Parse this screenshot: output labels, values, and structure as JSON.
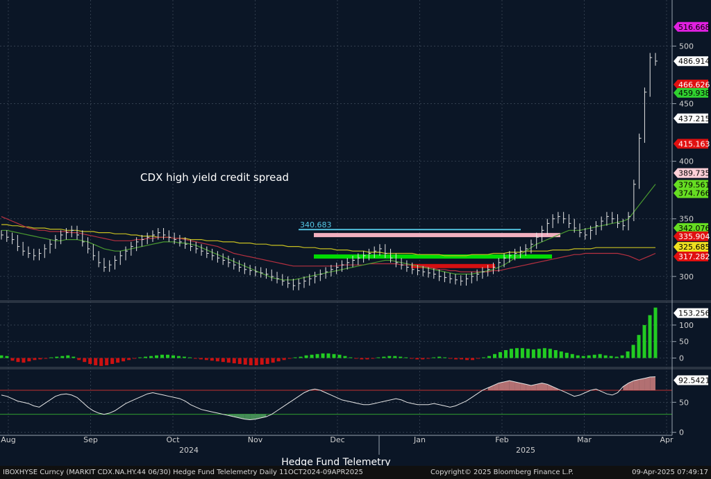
{
  "chart_data": [
    {
      "type": "line",
      "title": "CDX high yield credit spread",
      "subtype": "daily price bars with TD Sequential counts, moving averages and support/resistance levels",
      "ylim": [
        280,
        540
      ],
      "yticks": [
        300,
        350,
        400,
        450,
        500
      ],
      "months": [
        "Aug",
        "Sep",
        "Oct",
        "Nov",
        "Dec",
        "Jan",
        "Feb",
        "Mar",
        "Apr"
      ],
      "years": [
        "2024",
        "2025"
      ],
      "close": [
        336,
        334,
        332,
        326,
        322,
        320,
        318,
        320,
        324,
        328,
        332,
        336,
        338,
        340,
        336,
        330,
        324,
        318,
        312,
        308,
        310,
        314,
        318,
        322,
        326,
        330,
        332,
        334,
        336,
        338,
        336,
        334,
        332,
        330,
        328,
        326,
        324,
        322,
        320,
        318,
        316,
        314,
        312,
        310,
        308,
        306,
        305,
        304,
        303,
        302,
        300,
        298,
        296,
        294,
        292,
        294,
        296,
        298,
        300,
        302,
        304,
        306,
        308,
        310,
        312,
        314,
        316,
        318,
        320,
        322,
        324,
        320,
        316,
        312,
        310,
        308,
        306,
        305,
        304,
        303,
        302,
        300,
        299,
        298,
        297,
        296,
        298,
        300,
        302,
        304,
        306,
        308,
        312,
        316,
        318,
        320,
        322,
        324,
        328,
        334,
        340,
        346,
        350,
        352,
        350,
        346,
        342,
        338,
        336,
        340,
        344,
        348,
        352,
        350,
        346,
        344,
        352,
        380,
        420,
        460,
        490,
        487
      ],
      "ma_yellow": [
        345,
        345,
        344,
        344,
        343,
        343,
        342,
        342,
        342,
        341,
        341,
        341,
        340,
        340,
        340,
        339,
        339,
        339,
        338,
        338,
        338,
        337,
        337,
        337,
        336,
        336,
        335,
        335,
        335,
        334,
        334,
        334,
        333,
        333,
        333,
        332,
        332,
        332,
        331,
        331,
        331,
        330,
        330,
        330,
        329,
        329,
        329,
        328,
        328,
        328,
        327,
        327,
        327,
        326,
        326,
        326,
        325,
        325,
        325,
        324,
        324,
        324,
        323,
        323,
        323,
        322,
        322,
        322,
        321,
        321,
        321,
        320,
        320,
        320,
        320,
        320,
        320,
        319,
        319,
        319,
        319,
        319,
        318,
        318,
        318,
        318,
        318,
        319,
        319,
        319,
        319,
        320,
        320,
        320,
        321,
        321,
        321,
        322,
        322,
        322,
        322,
        322,
        323,
        323,
        323,
        323,
        324,
        324,
        324,
        324,
        325,
        325,
        325,
        325,
        325,
        325,
        325,
        325,
        325,
        325,
        325,
        325
      ],
      "ma_red": [
        352,
        350,
        348,
        346,
        344,
        342,
        341,
        340,
        340,
        339,
        339,
        339,
        339,
        338,
        338,
        337,
        336,
        335,
        334,
        333,
        332,
        331,
        331,
        331,
        331,
        332,
        332,
        333,
        333,
        334,
        334,
        334,
        333,
        333,
        332,
        331,
        330,
        329,
        328,
        327,
        326,
        324,
        322,
        320,
        319,
        318,
        317,
        316,
        315,
        314,
        313,
        312,
        311,
        310,
        309,
        309,
        309,
        309,
        309,
        309,
        309,
        309,
        309,
        310,
        310,
        310,
        310,
        310,
        311,
        311,
        311,
        311,
        311,
        311,
        310,
        310,
        310,
        309,
        309,
        308,
        307,
        306,
        306,
        305,
        305,
        304,
        304,
        304,
        304,
        304,
        304,
        305,
        305,
        306,
        307,
        308,
        309,
        310,
        311,
        312,
        313,
        314,
        315,
        316,
        317,
        318,
        319,
        319,
        320,
        320,
        320,
        320,
        320,
        320,
        320,
        319,
        318,
        316,
        314,
        316,
        318,
        320
      ],
      "ma_green": [
        340,
        340,
        339,
        338,
        337,
        336,
        335,
        334,
        333,
        332,
        331,
        331,
        332,
        332,
        332,
        331,
        330,
        328,
        326,
        324,
        323,
        322,
        322,
        323,
        324,
        325,
        326,
        327,
        328,
        329,
        330,
        330,
        330,
        329,
        329,
        328,
        327,
        325,
        323,
        321,
        319,
        317,
        315,
        313,
        311,
        309,
        307,
        305,
        303,
        301,
        299,
        298,
        297,
        297,
        297,
        298,
        299,
        300,
        301,
        302,
        303,
        304,
        305,
        306,
        307,
        308,
        309,
        310,
        311,
        312,
        313,
        314,
        314,
        313,
        312,
        311,
        310,
        309,
        308,
        307,
        306,
        305,
        304,
        303,
        302,
        302,
        302,
        302,
        303,
        304,
        305,
        306,
        308,
        310,
        313,
        316,
        319,
        322,
        325,
        328,
        330,
        332,
        334,
        336,
        338,
        340,
        340,
        340,
        341,
        342,
        343,
        344,
        345,
        346,
        347,
        348,
        350,
        356,
        362,
        368,
        374,
        380
      ],
      "levels": [
        {
          "value": 340.683,
          "label": "340.683",
          "color": "#55c8e6"
        },
        {
          "value": 335.904,
          "color": "#ffb8c8"
        },
        {
          "value": 317.282,
          "color": "#00e600"
        },
        {
          "value": 309,
          "color": "#e01010"
        }
      ],
      "right_labels": [
        {
          "value": 516.668,
          "label": "516.668",
          "bg": "#e020e0",
          "fg": "#000000"
        },
        {
          "value": 486.914,
          "label": "486.914",
          "bg": "#ffffff",
          "fg": "#000000"
        },
        {
          "value": 466.626,
          "label": "466.626",
          "bg": "#e01010",
          "fg": "#ffffff"
        },
        {
          "value": 459.938,
          "label": "459.938",
          "bg": "#30d030",
          "fg": "#000000"
        },
        {
          "value": 437.215,
          "label": "437.215",
          "bg": "#ffffff",
          "fg": "#000000"
        },
        {
          "value": 415.163,
          "label": "415.163",
          "bg": "#e01010",
          "fg": "#ffffff"
        },
        {
          "value": 389.735,
          "label": "389.735",
          "bg": "#ffd0d8",
          "fg": "#000000"
        },
        {
          "value": 379.561,
          "label": "379.561",
          "bg": "#66dd22",
          "fg": "#000000"
        },
        {
          "value": 374.766,
          "label": "374.766",
          "bg": "#66dd22",
          "fg": "#000000"
        },
        {
          "value": 342.076,
          "label": "342.076",
          "bg": "#66dd22",
          "fg": "#000000"
        },
        {
          "value": 335.904,
          "label": "335.904",
          "bg": "#e01010",
          "fg": "#ffffff"
        },
        {
          "value": 325.685,
          "label": "325.685",
          "bg": "#f0e020",
          "fg": "#000000"
        },
        {
          "value": 317.282,
          "label": "317.282",
          "bg": "#e01010",
          "fg": "#ffffff"
        }
      ]
    },
    {
      "type": "bar",
      "title": "",
      "ylim": [
        -20,
        165
      ],
      "yticks": [
        0,
        50,
        100
      ],
      "current_label": "153.2563",
      "values": [
        8,
        6,
        -8,
        -12,
        -14,
        -10,
        -6,
        -4,
        -2,
        2,
        4,
        6,
        8,
        4,
        -6,
        -12,
        -18,
        -22,
        -24,
        -22,
        -18,
        -14,
        -10,
        -6,
        -2,
        2,
        4,
        6,
        8,
        10,
        10,
        8,
        6,
        4,
        2,
        -2,
        -4,
        -6,
        -8,
        -10,
        -12,
        -14,
        -16,
        -18,
        -20,
        -22,
        -22,
        -20,
        -18,
        -14,
        -10,
        -6,
        -2,
        2,
        4,
        8,
        10,
        12,
        14,
        14,
        12,
        10,
        6,
        2,
        -2,
        -4,
        -4,
        -2,
        2,
        4,
        6,
        6,
        4,
        2,
        -2,
        -4,
        -4,
        -2,
        2,
        4,
        2,
        -2,
        -4,
        -4,
        -6,
        -6,
        -2,
        2,
        6,
        12,
        18,
        24,
        28,
        30,
        30,
        28,
        26,
        28,
        30,
        28,
        24,
        20,
        16,
        12,
        8,
        6,
        8,
        10,
        12,
        8,
        6,
        4,
        8,
        20,
        40,
        70,
        100,
        130,
        153
      ]
    },
    {
      "type": "line",
      "title": "",
      "ylim": [
        -5,
        100
      ],
      "yticks": [
        0,
        50
      ],
      "hlines": [
        70,
        30
      ],
      "current_label": "92.5421",
      "values": [
        62,
        60,
        56,
        52,
        50,
        48,
        44,
        42,
        48,
        54,
        60,
        63,
        64,
        62,
        58,
        50,
        42,
        36,
        32,
        30,
        32,
        36,
        42,
        48,
        52,
        56,
        60,
        64,
        66,
        64,
        62,
        60,
        58,
        56,
        52,
        46,
        42,
        38,
        36,
        34,
        32,
        30,
        28,
        26,
        24,
        22,
        21,
        22,
        24,
        26,
        30,
        36,
        42,
        48,
        54,
        60,
        66,
        70,
        72,
        70,
        66,
        62,
        58,
        54,
        52,
        50,
        48,
        46,
        46,
        48,
        50,
        52,
        54,
        56,
        54,
        50,
        48,
        46,
        46,
        46,
        48,
        46,
        44,
        42,
        44,
        48,
        52,
        58,
        64,
        70,
        74,
        78,
        82,
        84,
        86,
        84,
        82,
        80,
        78,
        80,
        82,
        80,
        76,
        72,
        68,
        64,
        60,
        62,
        66,
        70,
        72,
        68,
        64,
        62,
        66,
        76,
        82,
        86,
        88,
        90,
        92,
        92.5
      ]
    }
  ],
  "axis": {
    "months": [
      "Aug",
      "Sep",
      "Oct",
      "Nov",
      "Dec",
      "Jan",
      "Feb",
      "Mar",
      "Apr"
    ],
    "year_2024": "2024",
    "year_2025": "2025"
  },
  "caption": "Hedge Fund Telemetry",
  "footer": {
    "left": "IBOXHYSE Curncy (MARKIT CDX.NA.HY.44 06/30) Hedge Fund Telelemetry  Daily 11OCT2024-09APR2025",
    "center": "Copyright© 2025 Bloomberg Finance L.P.",
    "right": "09-Apr-2025 07:49:17"
  },
  "colors": {
    "background": "#0b1626",
    "price": "#e6e6e6",
    "ma_yellow": "#c8c020",
    "ma_red": "#b83040",
    "ma_green": "#4a9a30",
    "hist_pos": "#22cc22",
    "hist_neg": "#cc1111",
    "rsi_line": "#e6e6e6",
    "rsi_over": "#d08080",
    "rsi_under": "#50a060"
  }
}
